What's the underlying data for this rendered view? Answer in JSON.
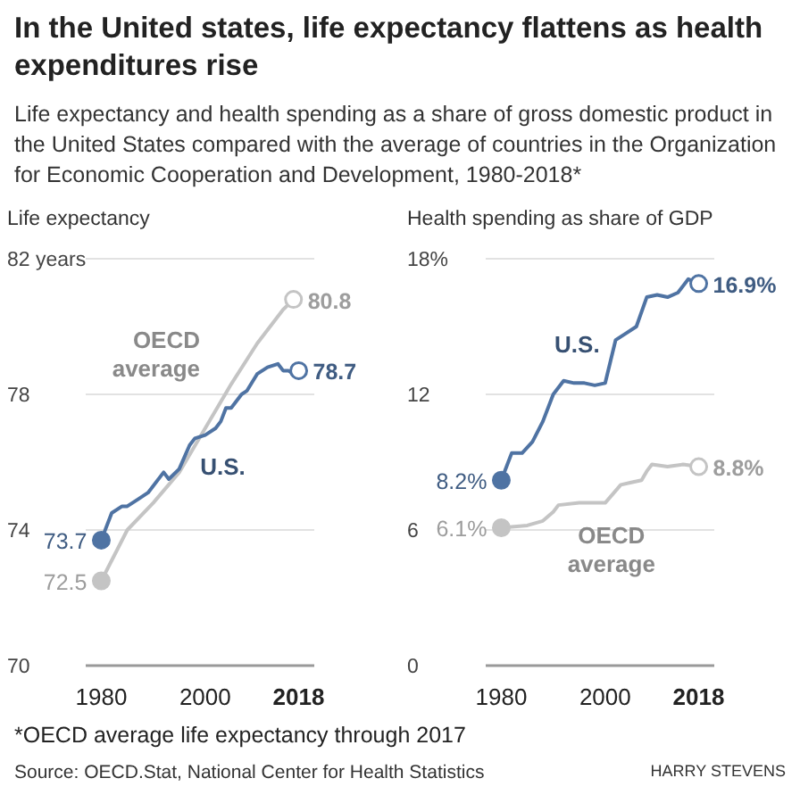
{
  "chart_data": [
    {
      "type": "line",
      "title": "In the United states, life expectancy flattens as health expenditures rise",
      "subtitle": "Life expectancy and health spending as a share of gross domestic product in the United States compared with the average of countries in the Organization for Economic Cooperation and Development, 1980-2018*",
      "ylabel": "Life expectancy",
      "xlim": [
        1977,
        2021
      ],
      "xticks": [
        1980,
        2000,
        2018
      ],
      "ylim": [
        70,
        82
      ],
      "yticks": [
        70,
        74,
        78,
        {
          "value": 82,
          "label": "82 years"
        }
      ],
      "grid": "y",
      "annotations": [
        "*OECD average life expectancy through 2017",
        "Source: OECD.Stat, National Center for Health Statistics",
        "HARRY STEVENS"
      ],
      "series": [
        {
          "name": "OECD average",
          "color": "#c4c4c4",
          "x": [
            1980,
            1985,
            1990,
            1995,
            2000,
            2005,
            2010,
            2015,
            2017
          ],
          "values": [
            72.5,
            74.0,
            74.8,
            75.7,
            77.0,
            78.3,
            79.5,
            80.5,
            80.8
          ],
          "value_labels": [
            "72.5",
            null,
            null,
            null,
            null,
            null,
            null,
            null,
            "80.8"
          ]
        },
        {
          "name": "U.S.",
          "color": "#4f73a3",
          "x": [
            1980,
            1982,
            1984,
            1985,
            1987,
            1989,
            1992,
            1993,
            1995,
            1997,
            1998,
            2000,
            2002,
            2003,
            2004,
            2005,
            2007,
            2008,
            2010,
            2012,
            2014,
            2015,
            2016,
            2017,
            2018
          ],
          "values": [
            73.7,
            74.5,
            74.7,
            74.7,
            74.9,
            75.1,
            75.7,
            75.5,
            75.8,
            76.5,
            76.7,
            76.8,
            77.0,
            77.2,
            77.6,
            77.6,
            78.0,
            78.1,
            78.6,
            78.8,
            78.9,
            78.7,
            78.7,
            78.6,
            78.7
          ],
          "value_labels": [
            "73.7",
            null,
            null,
            null,
            null,
            null,
            null,
            null,
            null,
            null,
            null,
            null,
            null,
            null,
            null,
            null,
            null,
            null,
            null,
            null,
            null,
            null,
            null,
            null,
            "78.7"
          ]
        }
      ]
    },
    {
      "type": "line",
      "ylabel": "Health spending as share of GDP",
      "xlim": [
        1977,
        2021
      ],
      "xticks": [
        1980,
        2000,
        2018
      ],
      "ylim": [
        0,
        18
      ],
      "yticks": [
        0,
        6,
        12,
        {
          "value": 18,
          "label": "18%"
        }
      ],
      "grid": "y",
      "series": [
        {
          "name": "U.S.",
          "color": "#4f73a3",
          "x": [
            1980,
            1982,
            1984,
            1986,
            1988,
            1990,
            1992,
            1994,
            1996,
            1998,
            2000,
            2002,
            2004,
            2006,
            2008,
            2010,
            2012,
            2014,
            2016,
            2018
          ],
          "values": [
            8.2,
            9.4,
            9.4,
            9.9,
            10.8,
            12.0,
            12.6,
            12.5,
            12.5,
            12.4,
            12.5,
            14.4,
            14.7,
            15.0,
            16.3,
            16.4,
            16.3,
            16.5,
            17.1,
            16.9
          ],
          "value_labels": [
            "8.2%",
            null,
            null,
            null,
            null,
            null,
            null,
            null,
            null,
            null,
            null,
            null,
            null,
            null,
            null,
            null,
            null,
            null,
            null,
            "16.9%"
          ]
        },
        {
          "name": "OECD average",
          "color": "#c4c4c4",
          "x": [
            1980,
            1985,
            1988,
            1990,
            1991,
            1995,
            1997,
            2000,
            2003,
            2005,
            2007,
            2008,
            2009,
            2012,
            2015,
            2018
          ],
          "values": [
            6.1,
            6.2,
            6.4,
            6.8,
            7.1,
            7.2,
            7.2,
            7.2,
            8.0,
            8.1,
            8.2,
            8.6,
            8.9,
            8.8,
            8.9,
            8.8
          ],
          "value_labels": [
            "6.1%",
            null,
            null,
            null,
            null,
            null,
            null,
            null,
            null,
            null,
            null,
            null,
            null,
            null,
            null,
            "8.8%"
          ]
        }
      ]
    }
  ]
}
